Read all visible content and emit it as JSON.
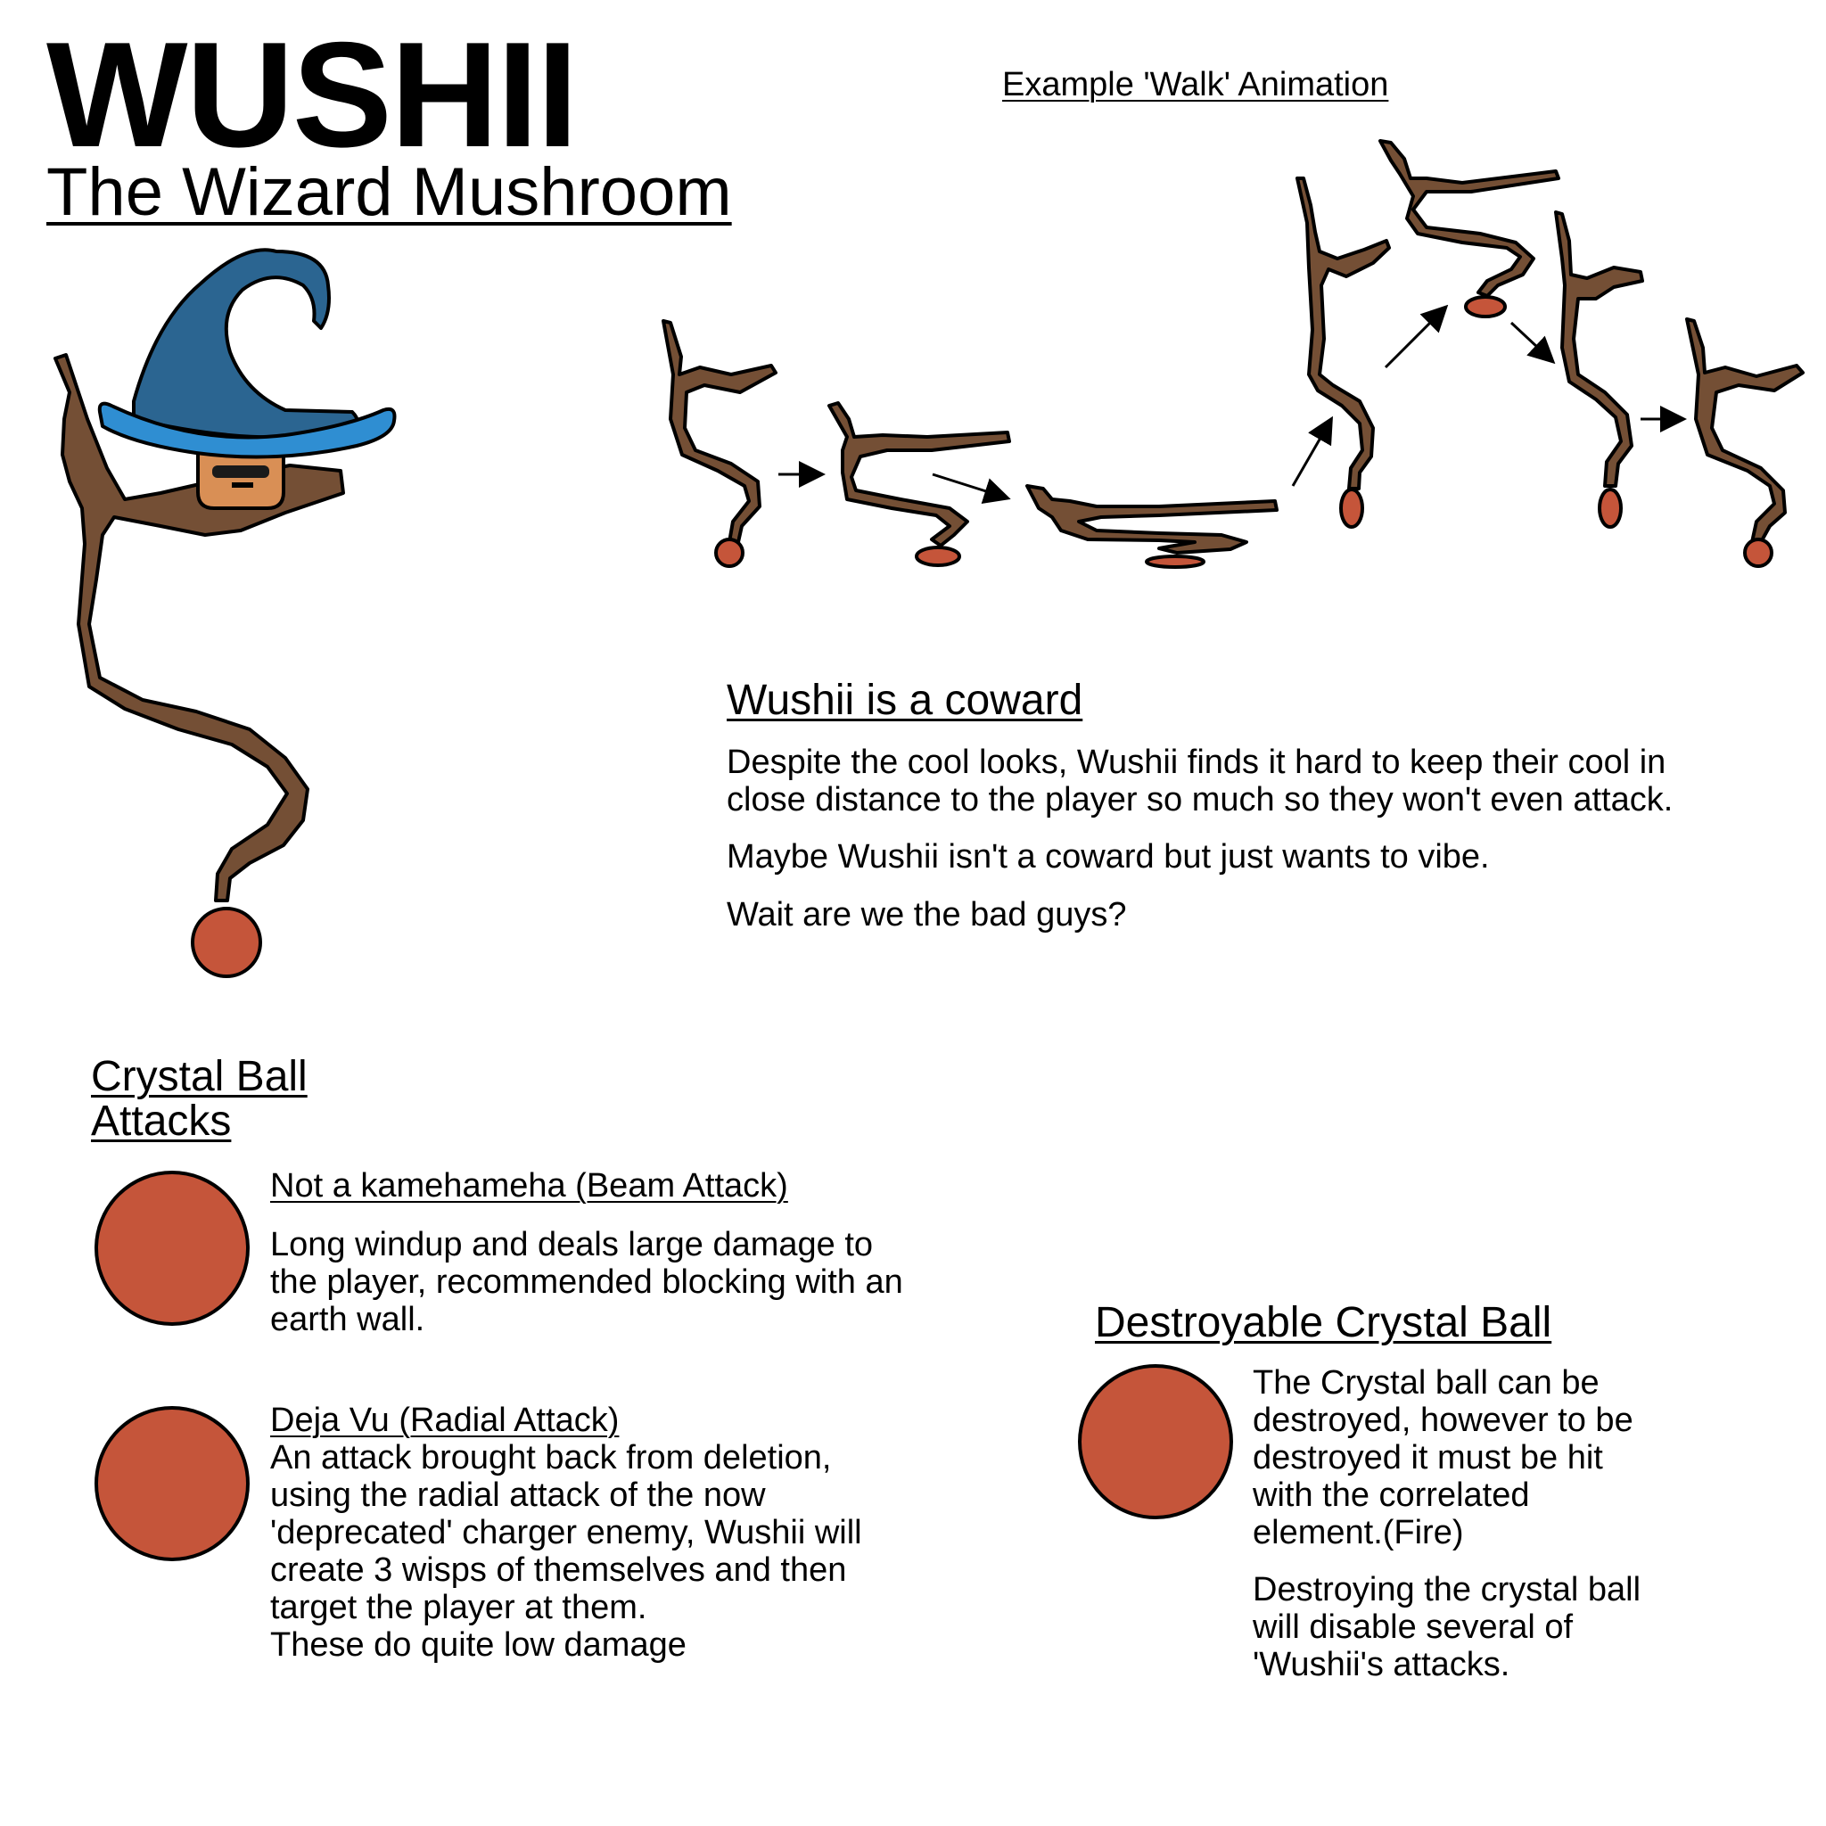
{
  "header": {
    "title": "WUSHII",
    "subtitle": "The Wizard Mushroom"
  },
  "walk_animation": {
    "caption": "Example 'Walk' Animation"
  },
  "coward_section": {
    "heading": "Wushii is a coward",
    "paragraph_1": "Despite the cool looks, Wushii finds it hard to keep their cool in\nclose distance to the player so much so they won't even attack.",
    "paragraph_2": "Maybe Wushii isn't a coward but just wants to vibe.",
    "paragraph_3": "Wait are we the bad guys?"
  },
  "attacks_section": {
    "heading_line_1": "Crystal Ball",
    "heading_line_2": "Attacks",
    "attacks": [
      {
        "name": "Not a kamehameha (Beam Attack)",
        "description": "Long windup and deals large damage to\nthe player, recommended blocking with an\nearth wall."
      },
      {
        "name": "Deja Vu (Radial Attack)",
        "description": "An attack brought back from deletion,\nusing the radial attack of the now\n'deprecated' charger enemy, Wushii will\ncreate 3 wisps of themselves and then\ntarget the player at them.\nThese do quite low damage"
      }
    ]
  },
  "destroyable_section": {
    "heading": "Destroyable Crystal Ball",
    "paragraph_1": "The Crystal ball can be\ndestroyed, however to be\ndestroyed it must be hit\nwith the correlated\nelement.(Fire)",
    "paragraph_2": "Destroying the crystal ball\nwill disable several of\n'Wushii's attacks."
  },
  "colors": {
    "stem_brown": "#744f35",
    "crystal_ball": "#c5553a",
    "hat_dark_blue": "#2b6591",
    "hat_brim_blue": "#2f8ed2",
    "face_orange": "#d98f55"
  }
}
